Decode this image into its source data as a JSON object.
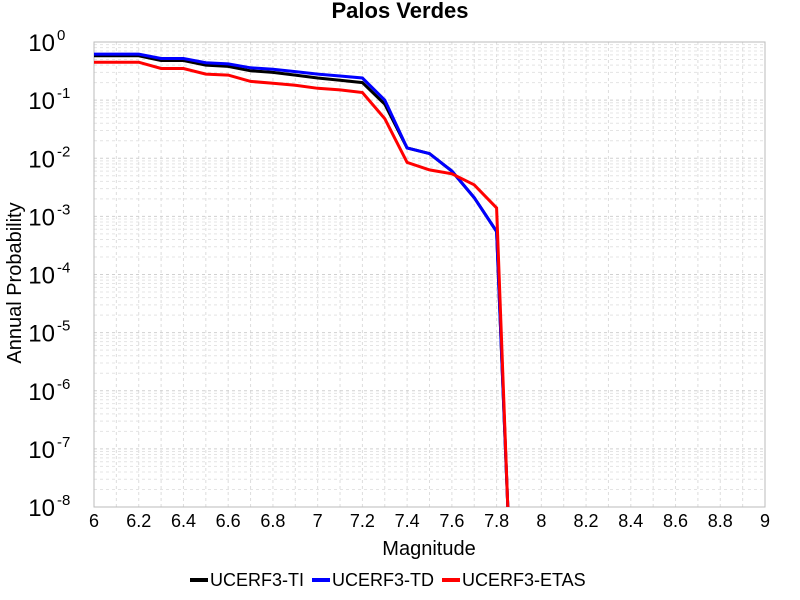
{
  "chart_data": {
    "type": "line",
    "title": "Palos Verdes",
    "xlabel": "Magnitude",
    "ylabel": "Annual Probability",
    "xlim": [
      6,
      9
    ],
    "ylim": [
      1e-08,
      1
    ],
    "yscale": "log",
    "grid": true,
    "legend_position": "bottom",
    "x_ticks": [
      "6",
      "6.2",
      "6.4",
      "6.6",
      "6.8",
      "7",
      "7.2",
      "7.4",
      "7.6",
      "7.8",
      "8",
      "8.2",
      "8.4",
      "8.6",
      "8.8",
      "9"
    ],
    "y_ticks": [
      {
        "base": "10",
        "exp": "0"
      },
      {
        "base": "10",
        "exp": "-1"
      },
      {
        "base": "10",
        "exp": "-2"
      },
      {
        "base": "10",
        "exp": "-3"
      },
      {
        "base": "10",
        "exp": "-4"
      },
      {
        "base": "10",
        "exp": "-5"
      },
      {
        "base": "10",
        "exp": "-6"
      },
      {
        "base": "10",
        "exp": "-7"
      },
      {
        "base": "10",
        "exp": "-8"
      }
    ],
    "series": [
      {
        "name": "UCERF3-TI",
        "color": "#000000",
        "x": [
          6.0,
          6.2,
          6.3,
          6.4,
          6.5,
          6.6,
          6.7,
          6.8,
          6.9,
          7.0,
          7.1,
          7.2,
          7.3,
          7.4,
          7.5,
          7.6,
          7.7,
          7.8,
          7.85
        ],
        "y": [
          0.58,
          0.58,
          0.48,
          0.48,
          0.4,
          0.38,
          0.32,
          0.3,
          0.27,
          0.24,
          0.22,
          0.2,
          0.085,
          0.015,
          0.012,
          0.006,
          0.0021,
          0.00055,
          1e-08
        ]
      },
      {
        "name": "UCERF3-TD",
        "color": "#0000ff",
        "x": [
          6.0,
          6.2,
          6.3,
          6.4,
          6.5,
          6.6,
          6.7,
          6.8,
          6.9,
          7.0,
          7.1,
          7.2,
          7.3,
          7.4,
          7.5,
          7.6,
          7.7,
          7.8,
          7.85
        ],
        "y": [
          0.62,
          0.62,
          0.52,
          0.52,
          0.44,
          0.42,
          0.36,
          0.34,
          0.31,
          0.28,
          0.26,
          0.24,
          0.1,
          0.015,
          0.012,
          0.006,
          0.0021,
          0.00055,
          1e-08
        ]
      },
      {
        "name": "UCERF3-ETAS",
        "color": "#ff0000",
        "x": [
          6.0,
          6.2,
          6.3,
          6.4,
          6.5,
          6.6,
          6.7,
          6.8,
          6.9,
          7.0,
          7.1,
          7.2,
          7.3,
          7.4,
          7.5,
          7.6,
          7.7,
          7.8,
          7.85
        ],
        "y": [
          0.45,
          0.45,
          0.35,
          0.35,
          0.28,
          0.27,
          0.21,
          0.195,
          0.18,
          0.16,
          0.15,
          0.135,
          0.048,
          0.0085,
          0.0063,
          0.0054,
          0.0035,
          0.0014,
          1e-08
        ]
      }
    ]
  }
}
